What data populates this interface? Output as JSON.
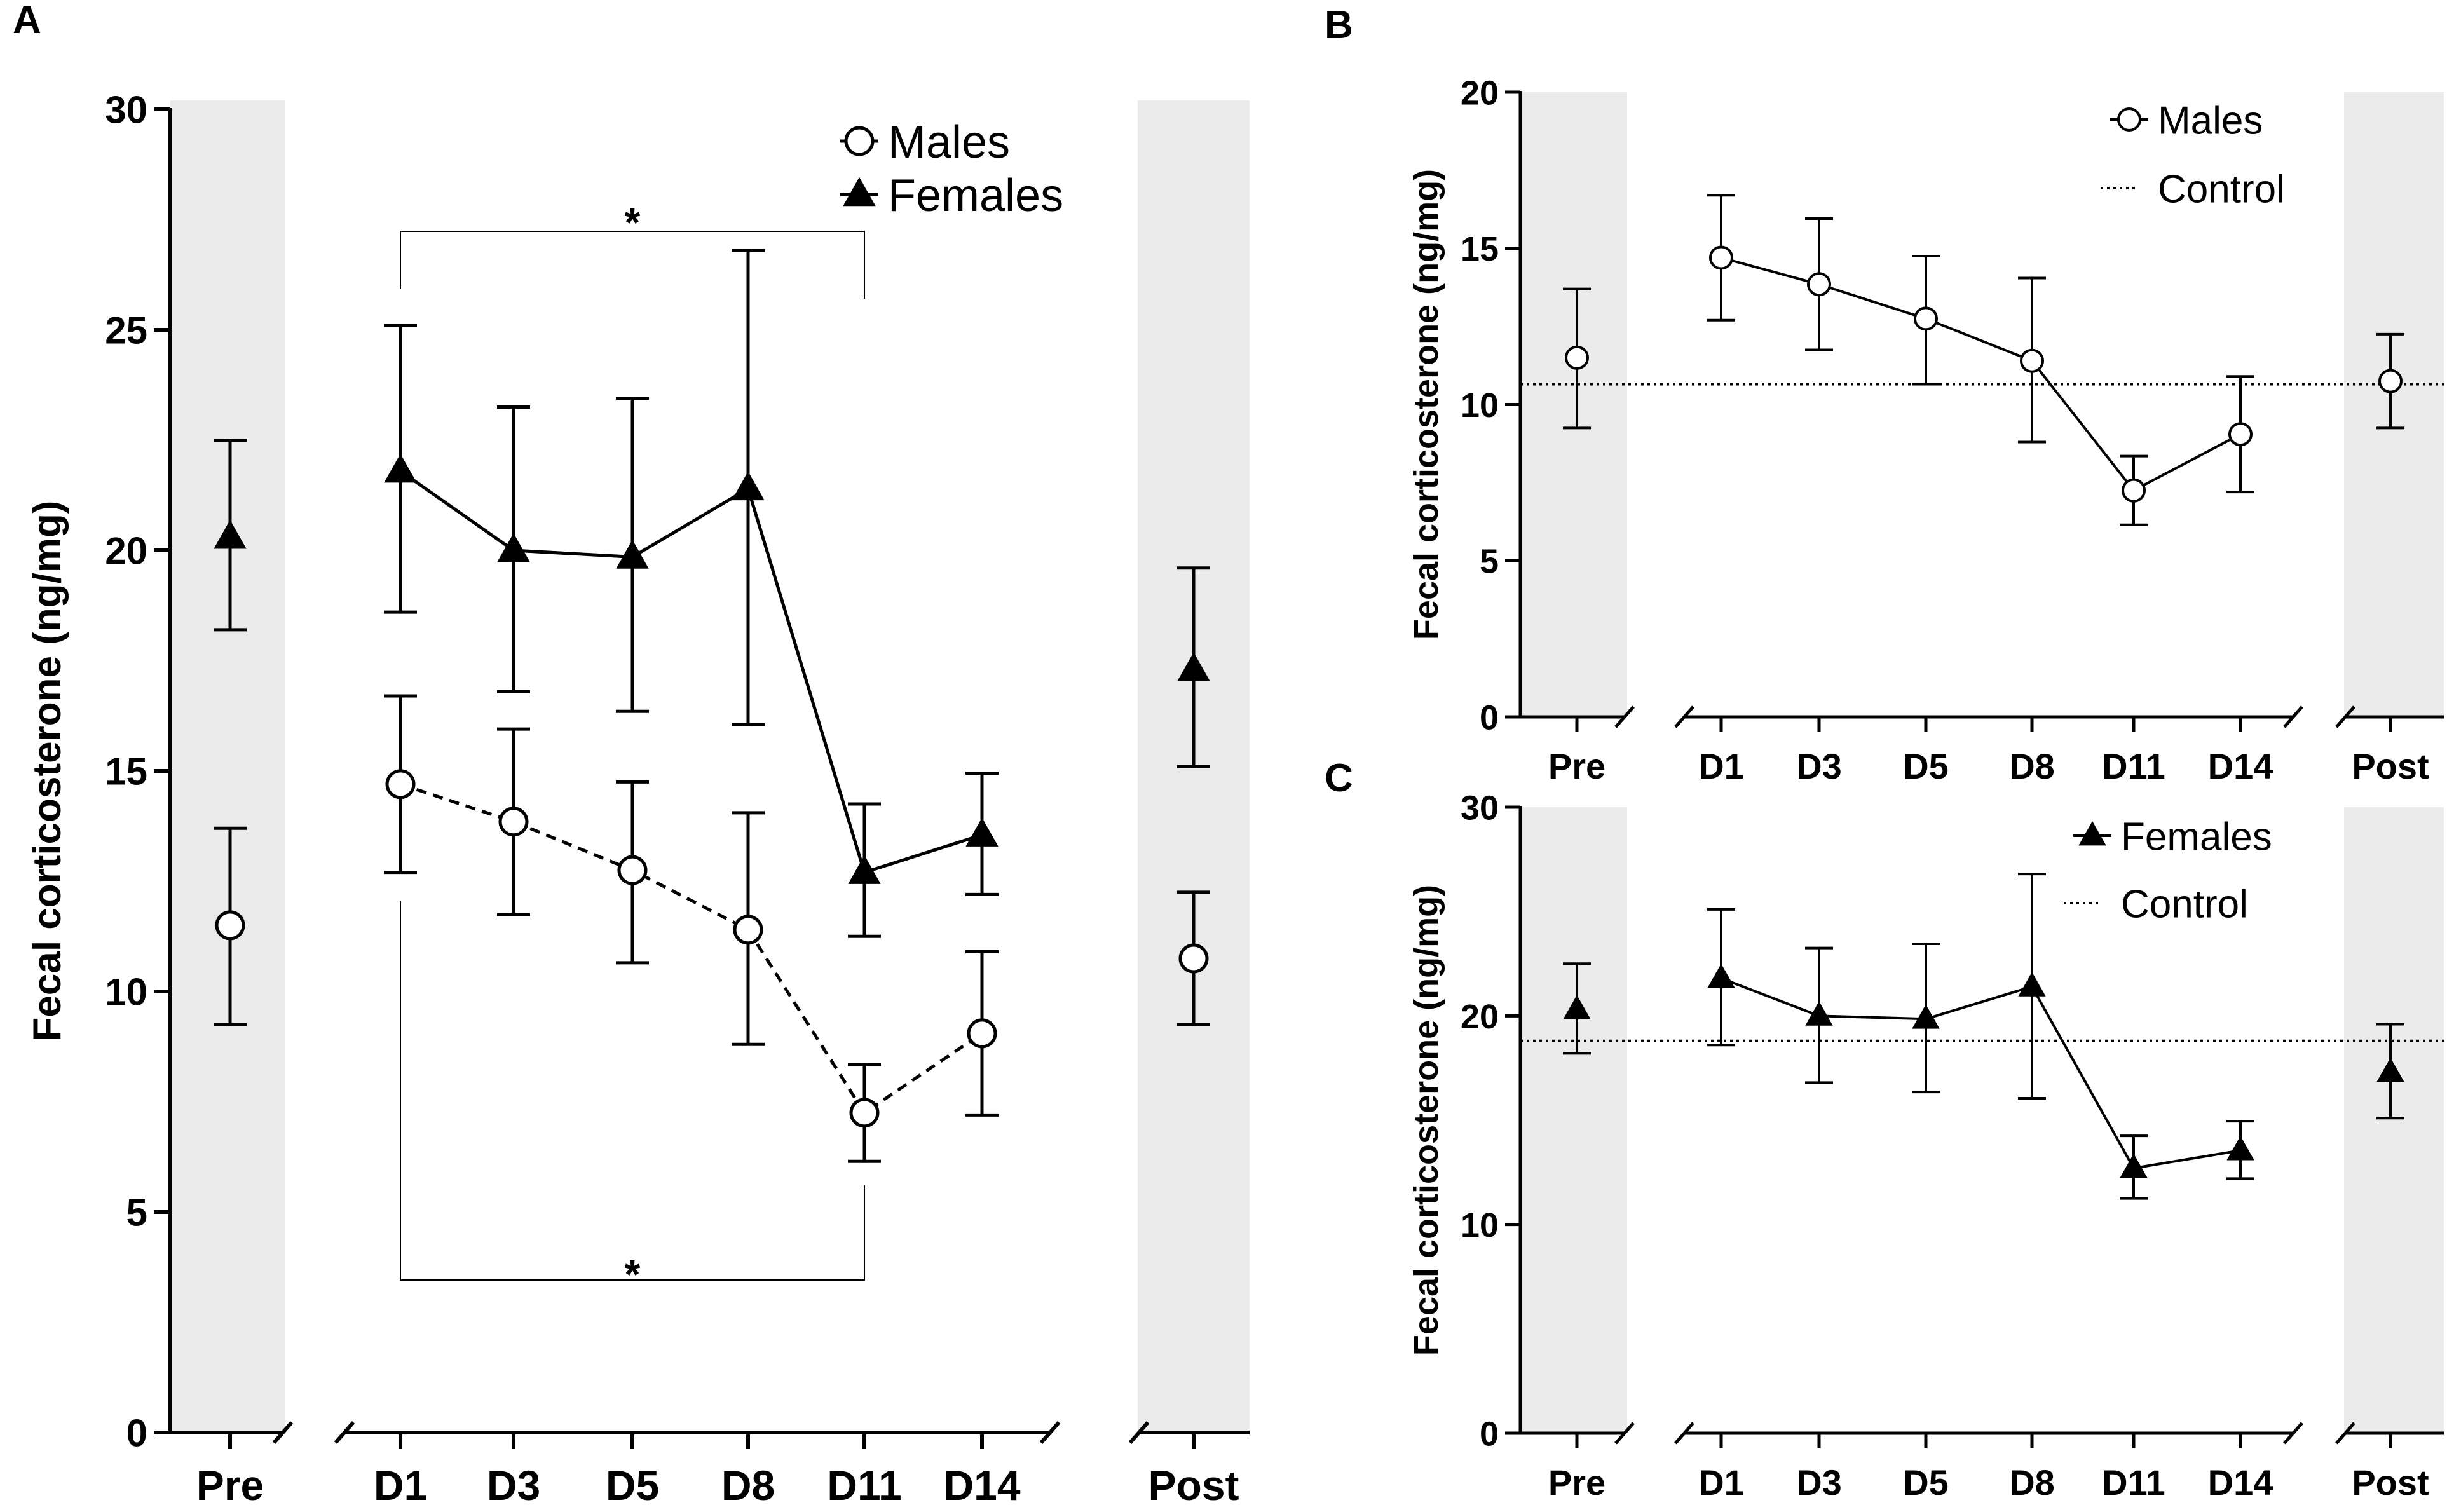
{
  "chart_data": [
    {
      "panel": "A",
      "type": "line",
      "ylabel": "Fecal corticosterone (ng/mg)",
      "ylim": [
        0,
        30
      ],
      "yticks": [
        0,
        5,
        10,
        15,
        20,
        25,
        30
      ],
      "categories": [
        "Pre",
        "D1",
        "D3",
        "D5",
        "D8",
        "D11",
        "D14",
        "Post"
      ],
      "shaded_groups": [
        "Pre",
        "Post"
      ],
      "legend": [
        "Males",
        "Females"
      ],
      "series": [
        {
          "name": "Males",
          "marker": "open-circle",
          "line": "dashed",
          "values": [
            11.5,
            14.7,
            13.85,
            12.75,
            11.4,
            7.25,
            9.05,
            10.75
          ],
          "err_upper": [
            13.7,
            16.7,
            15.95,
            14.75,
            14.05,
            8.35,
            10.9,
            12.25
          ],
          "err_lower": [
            9.25,
            12.7,
            11.75,
            10.65,
            8.8,
            6.15,
            7.2,
            9.25
          ]
        },
        {
          "name": "Females",
          "marker": "filled-triangle",
          "line": "solid",
          "values": [
            20.3,
            21.8,
            20.0,
            19.85,
            21.4,
            12.7,
            13.55,
            17.3
          ],
          "err_upper": [
            22.5,
            25.1,
            23.25,
            23.45,
            26.8,
            14.25,
            14.95,
            19.6
          ],
          "err_lower": [
            18.2,
            18.6,
            16.8,
            16.35,
            16.05,
            11.25,
            12.2,
            15.1
          ]
        }
      ],
      "annotations": [
        {
          "text": "*",
          "from": "D1",
          "to": "D11",
          "series": "Females",
          "position": "above"
        },
        {
          "text": "*",
          "from": "D1",
          "to": "D11",
          "series": "Males",
          "position": "below"
        }
      ]
    },
    {
      "panel": "B",
      "type": "line",
      "ylabel": "Fecal corticosterone (ng/mg)",
      "ylim": [
        0,
        20
      ],
      "yticks": [
        0,
        5,
        10,
        15,
        20
      ],
      "categories": [
        "Pre",
        "D1",
        "D3",
        "D5",
        "D8",
        "D11",
        "D14",
        "Post"
      ],
      "shaded_groups": [
        "Pre",
        "Post"
      ],
      "legend": [
        "Males",
        "Control"
      ],
      "control_value": 10.65,
      "series": [
        {
          "name": "Males",
          "marker": "open-circle",
          "line": "solid",
          "values": [
            11.5,
            14.7,
            13.85,
            12.75,
            11.4,
            7.25,
            9.05,
            10.75
          ],
          "err_upper": [
            13.7,
            16.7,
            15.95,
            14.75,
            14.05,
            8.35,
            10.9,
            12.25
          ],
          "err_lower": [
            9.25,
            12.7,
            11.75,
            10.65,
            8.8,
            6.15,
            7.2,
            9.25
          ]
        }
      ]
    },
    {
      "panel": "C",
      "type": "line",
      "ylabel": "Fecal corticosterone (ng/mg)",
      "ylim": [
        0,
        30
      ],
      "yticks": [
        0,
        10,
        20,
        30
      ],
      "categories": [
        "Pre",
        "D1",
        "D3",
        "D5",
        "D8",
        "D11",
        "D14",
        "Post"
      ],
      "shaded_groups": [
        "Pre",
        "Post"
      ],
      "legend": [
        "Females",
        "Control"
      ],
      "control_value": 18.8,
      "series": [
        {
          "name": "Females",
          "marker": "filled-triangle",
          "line": "solid",
          "values": [
            20.3,
            21.8,
            20.0,
            19.85,
            21.4,
            12.7,
            13.55,
            17.3
          ],
          "err_upper": [
            22.5,
            25.1,
            23.25,
            23.45,
            26.8,
            14.25,
            14.95,
            19.6
          ],
          "err_lower": [
            18.2,
            18.6,
            16.8,
            16.35,
            16.05,
            11.25,
            12.2,
            15.1
          ]
        }
      ]
    }
  ]
}
